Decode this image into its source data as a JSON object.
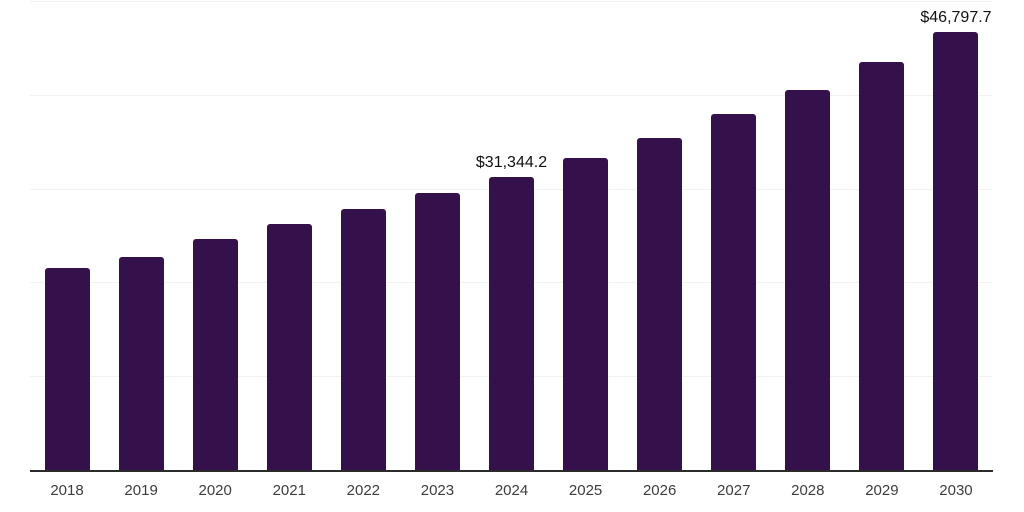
{
  "chart_data": {
    "type": "bar",
    "title": "",
    "xlabel": "",
    "ylabel": "",
    "categories": [
      "2018",
      "2019",
      "2020",
      "2021",
      "2022",
      "2023",
      "2024",
      "2025",
      "2026",
      "2027",
      "2028",
      "2029",
      "2030"
    ],
    "values": [
      21600,
      22800,
      24700,
      26300,
      27900,
      29600,
      31344.2,
      33350,
      35550,
      38100,
      40650,
      43650,
      46797.7
    ],
    "point_labels": {
      "2024": "$31,344.2",
      "2030": "$46,797.7"
    },
    "ylim": [
      0,
      50000
    ],
    "gridline_values": [
      10000,
      20000,
      30000,
      40000,
      50000
    ],
    "grid": "horizontal-faint",
    "legend_position": "none",
    "colors": {
      "bar": "#35114B",
      "axis_line": "#2B2B2B",
      "gridline": "#F2F2F2",
      "x_label": "#3D3D3D",
      "value_label": "#111111",
      "background": "#FFFFFF"
    }
  }
}
